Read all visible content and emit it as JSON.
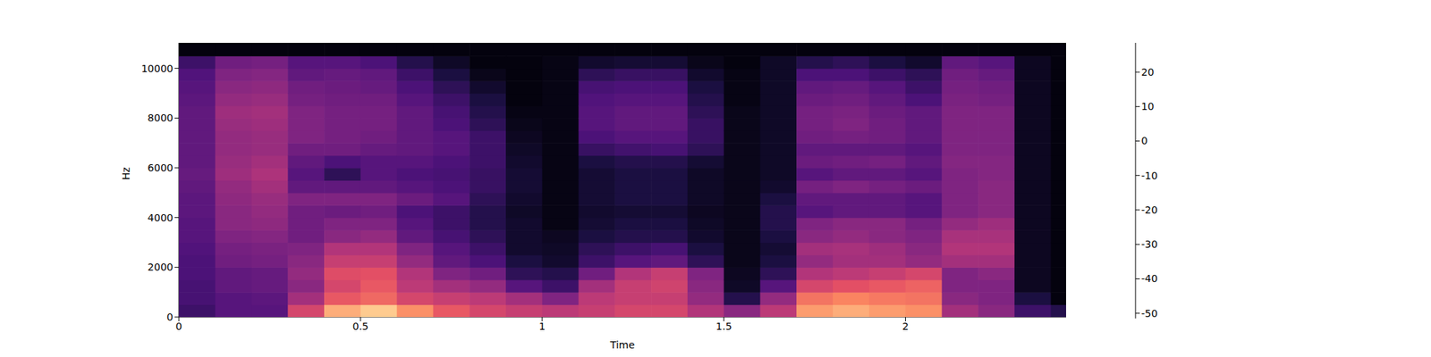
{
  "chart_data": {
    "type": "heatmap",
    "x_label": "Time",
    "y_label": "Hz",
    "xlim": [
      0,
      2.442
    ],
    "ylim": [
      0,
      11025
    ],
    "xticks": [
      0,
      0.5,
      1,
      1.5,
      2
    ],
    "yticks": [
      0,
      2000,
      4000,
      6000,
      8000,
      10000
    ],
    "x_edges": [
      0,
      0.1,
      0.2,
      0.3,
      0.4,
      0.5,
      0.6,
      0.7,
      0.8,
      0.9,
      1.0,
      1.1,
      1.2,
      1.3,
      1.4,
      1.5,
      1.6,
      1.7,
      1.8,
      1.9,
      2.0,
      2.1,
      2.2,
      2.3,
      2.4,
      2.442
    ],
    "y_edges": [
      0,
      500,
      1000,
      1500,
      2000,
      2500,
      3000,
      3500,
      4000,
      4500,
      5000,
      5500,
      6000,
      6500,
      7000,
      7500,
      8000,
      8500,
      9000,
      9500,
      10000,
      10500,
      11025
    ],
    "cells": [
      [
        -35,
        -33,
        -33,
        -32,
        -32,
        -31,
        -30,
        -30,
        -29,
        -29,
        -28,
        -27,
        -28,
        -28,
        -28,
        -28,
        -28,
        -29,
        -30,
        -31,
        -35,
        -50
      ],
      [
        -30,
        -30,
        -28,
        -28,
        -25,
        -24,
        -22,
        -20,
        -20,
        -19,
        -18,
        -16,
        -17,
        -18,
        -18,
        -17,
        -16,
        -18,
        -20,
        -22,
        -25,
        -50
      ],
      [
        -30,
        -29,
        -27,
        -27,
        -24,
        -23,
        -21,
        -19,
        -18,
        -17,
        -15,
        -13,
        -15,
        -17,
        -17,
        -16,
        -15,
        -17,
        -19,
        -21,
        -24,
        -50
      ],
      [
        -5,
        -15,
        -20,
        -18,
        -20,
        -22,
        -25,
        -25,
        -25,
        -22,
        -28,
        -30,
        -28,
        -25,
        -22,
        -22,
        -22,
        -24,
        -25,
        -28,
        -30,
        -50
      ],
      [
        15,
        0,
        -5,
        -3,
        -8,
        -12,
        -20,
        -22,
        -26,
        -22,
        -28,
        -38,
        -32,
        -25,
        -24,
        -24,
        -24,
        -25,
        -26,
        -27,
        -30,
        -50
      ],
      [
        20,
        3,
        0,
        -2,
        -8,
        -12,
        -18,
        -22,
        -25,
        -22,
        -28,
        -30,
        -30,
        -27,
        -25,
        -24,
        -24,
        -25,
        -27,
        -28,
        -32,
        -50
      ],
      [
        10,
        -5,
        -10,
        -12,
        -18,
        -22,
        -28,
        -30,
        -32,
        -26,
        -30,
        -32,
        -30,
        -28,
        -28,
        -28,
        -28,
        -30,
        -32,
        -35,
        -40,
        -50
      ],
      [
        0,
        -8,
        -15,
        -22,
        -28,
        -30,
        -33,
        -35,
        -35,
        -30,
        -32,
        -33,
        -32,
        -30,
        -30,
        -32,
        -33,
        -35,
        -38,
        -42,
        -46,
        -50
      ],
      [
        -5,
        -10,
        -18,
        -25,
        -32,
        -35,
        -38,
        -40,
        -40,
        -38,
        -36,
        -36,
        -35,
        -35,
        -35,
        -38,
        -40,
        -42,
        -45,
        -48,
        -50,
        -50
      ],
      [
        -8,
        -15,
        -30,
        -38,
        -42,
        -45,
        -45,
        -45,
        -46,
        -45,
        -44,
        -44,
        -45,
        -46,
        -47,
        -48,
        -49,
        -50,
        -50,
        -50,
        -50,
        -50
      ],
      [
        -10,
        -22,
        -35,
        -40,
        -45,
        -46,
        -47,
        -49,
        -49,
        -49,
        -49,
        -49,
        -49,
        -49,
        -49,
        -49,
        -49,
        -49,
        -49,
        -49,
        -49,
        -50
      ],
      [
        -8,
        -10,
        -15,
        -25,
        -35,
        -38,
        -42,
        -44,
        -45,
        -44,
        -44,
        -44,
        -42,
        -36,
        -32,
        -30,
        -30,
        -31,
        -33,
        -38,
        -45,
        -50
      ],
      [
        -5,
        -8,
        -8,
        -12,
        -30,
        -35,
        -40,
        -42,
        -44,
        -42,
        -42,
        -42,
        -40,
        -34,
        -30,
        -28,
        -28,
        -30,
        -32,
        -36,
        -44,
        -50
      ],
      [
        -5,
        -8,
        -6,
        -8,
        -28,
        -33,
        -40,
        -42,
        -44,
        -42,
        -42,
        -42,
        -40,
        -33,
        -30,
        -28,
        -28,
        -30,
        -32,
        -36,
        -44,
        -50
      ],
      [
        -12,
        -18,
        -20,
        -22,
        -38,
        -42,
        -45,
        -46,
        -47,
        -46,
        -46,
        -46,
        -44,
        -38,
        -36,
        -36,
        -38,
        -40,
        -42,
        -45,
        -48,
        -50
      ],
      [
        -20,
        -40,
        -46,
        -47,
        -48,
        -48,
        -48,
        -48,
        -48,
        -48,
        -48,
        -48,
        -48,
        -48,
        -48,
        -48,
        -48,
        -49,
        -49,
        -49,
        -50,
        -50
      ],
      [
        -10,
        -18,
        -30,
        -38,
        -42,
        -44,
        -42,
        -40,
        -40,
        -42,
        -45,
        -46,
        -46,
        -46,
        -46,
        -46,
        -46,
        -46,
        -46,
        -46,
        -46,
        -50
      ],
      [
        12,
        5,
        -5,
        -12,
        -18,
        -15,
        -20,
        -22,
        -30,
        -28,
        -24,
        -30,
        -26,
        -28,
        -25,
        -24,
        -24,
        -26,
        -28,
        -32,
        -40,
        -50
      ],
      [
        15,
        8,
        -2,
        -10,
        -15,
        -14,
        -18,
        -20,
        -28,
        -28,
        -22,
        -28,
        -25,
        -28,
        -24,
        -22,
        -23,
        -25,
        -27,
        -32,
        -38,
        -50
      ],
      [
        12,
        6,
        0,
        -8,
        -15,
        -16,
        -20,
        -20,
        -28,
        -28,
        -24,
        -28,
        -24,
        -28,
        -25,
        -25,
        -26,
        -28,
        -30,
        -35,
        -42,
        -50
      ],
      [
        10,
        5,
        2,
        -5,
        -18,
        -20,
        -22,
        -24,
        -30,
        -30,
        -26,
        -30,
        -28,
        -30,
        -28,
        -28,
        -28,
        -32,
        -35,
        -38,
        -45,
        -50
      ],
      [
        -15,
        -20,
        -22,
        -22,
        -15,
        -12,
        -14,
        -18,
        -22,
        -22,
        -22,
        -22,
        -21,
        -22,
        -22,
        -22,
        -22,
        -23,
        -24,
        -25,
        -28,
        -50
      ],
      [
        -20,
        -22,
        -22,
        -20,
        -15,
        -12,
        -14,
        -16,
        -20,
        -20,
        -20,
        -21,
        -21,
        -22,
        -22,
        -22,
        -22,
        -24,
        -25,
        -27,
        -30,
        -50
      ],
      [
        -35,
        -42,
        -47,
        -47,
        -47,
        -47,
        -47,
        -47,
        -47,
        -47,
        -47,
        -47,
        -47,
        -47,
        -47,
        -47,
        -47,
        -47,
        -47,
        -47,
        -47,
        -50
      ],
      [
        -40,
        -50,
        -50,
        -50,
        -50,
        -50,
        -50,
        -50,
        -50,
        -50,
        -50,
        -50,
        -50,
        -50,
        -50,
        -50,
        -50,
        -50,
        -50,
        -50,
        -50,
        -50
      ]
    ],
    "colorbar": {
      "lim": [
        -51.5,
        28.5
      ],
      "ticks": [
        -50,
        -40,
        -30,
        -20,
        -10,
        0,
        10,
        20
      ]
    }
  }
}
